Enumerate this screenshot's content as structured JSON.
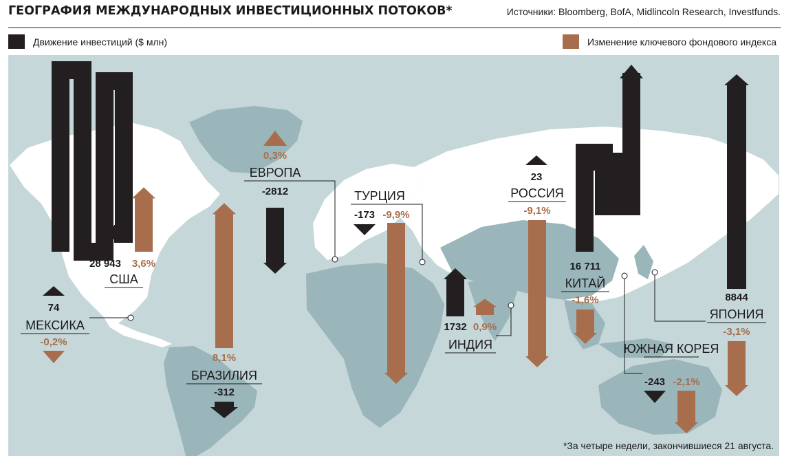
{
  "header": {
    "title": "ГЕОГРАФИЯ МЕЖДУНАРОДНЫХ ИНВЕСТИЦИОННЫХ ПОТОКОВ*",
    "sources": "Источники: Bloomberg, BofA, Midlincoln Research, Investfunds."
  },
  "legend": {
    "flow": "Движение инвестиций ($ млн)",
    "index": "Изменение ключевого фондового индекса"
  },
  "footnote": "*За четыре недели, закончившиеся 21 августа.",
  "colors": {
    "flow": "#231f20",
    "index": "#a86d4c",
    "ocean": "#c6d7d9",
    "land": "#ffffff",
    "land_alt": "#9ab6bb"
  },
  "chart_data": {
    "type": "bar",
    "series": [
      {
        "name": "Движение инвестиций ($ млн)",
        "unit": "$ млн"
      },
      {
        "name": "Изменение ключевого фондового индекса",
        "unit": "%"
      }
    ],
    "countries": [
      {
        "name": "США",
        "flow": 28943,
        "flow_label": "28 943",
        "index": 3.6,
        "index_label": "3,6%"
      },
      {
        "name": "МЕКСИКА",
        "flow": 74,
        "flow_label": "74",
        "index": -0.2,
        "index_label": "-0,2%"
      },
      {
        "name": "БРАЗИЛИЯ",
        "flow": -312,
        "flow_label": "-312",
        "index": 8.1,
        "index_label": "8,1%"
      },
      {
        "name": "ЕВРОПА",
        "flow": -2812,
        "flow_label": "-2812",
        "index": 0.3,
        "index_label": "0,3%"
      },
      {
        "name": "ТУРЦИЯ",
        "flow": -173,
        "flow_label": "-173",
        "index": -9.9,
        "index_label": "-9,9%"
      },
      {
        "name": "ИНДИЯ",
        "flow": 1732,
        "flow_label": "1732",
        "index": 0.9,
        "index_label": "0,9%"
      },
      {
        "name": "РОССИЯ",
        "flow": 23,
        "flow_label": "23",
        "index": -9.1,
        "index_label": "-9,1%"
      },
      {
        "name": "КИТАЙ",
        "flow": 16711,
        "flow_label": "16 711",
        "index": -1.6,
        "index_label": "-1,6%"
      },
      {
        "name": "ЮЖНАЯ КОРЕЯ",
        "flow": -243,
        "flow_label": "-243",
        "index": -2.1,
        "index_label": "-2,1%"
      },
      {
        "name": "ЯПОНИЯ",
        "flow": 8844,
        "flow_label": "8844",
        "index": -3.1,
        "index_label": "-3,1%"
      }
    ]
  }
}
